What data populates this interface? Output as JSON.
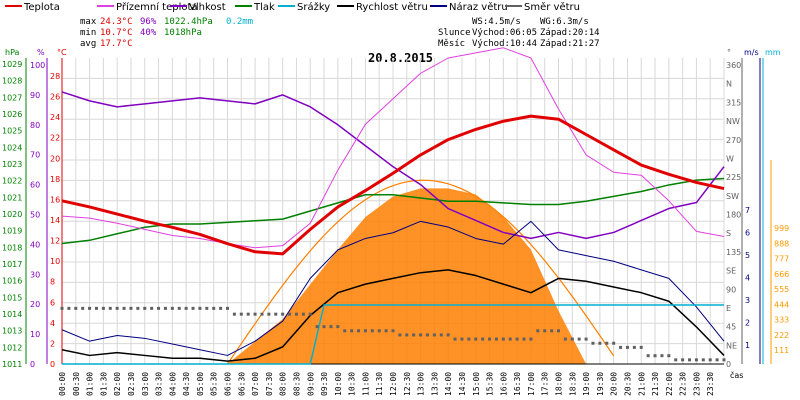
{
  "legend": [
    {
      "label": "Teplota",
      "color": "#e00000"
    },
    {
      "label": "Přízemní teplota",
      "color": "#e040e0"
    },
    {
      "label": "Vlhkost",
      "color": "#8000c0"
    },
    {
      "label": "Tlak",
      "color": "#008000"
    },
    {
      "label": "Srážky",
      "color": "#00b0d0"
    },
    {
      "label": "Rychlost větru",
      "color": "#000000"
    },
    {
      "label": "Náraz větru",
      "color": "#000080"
    },
    {
      "label": "Směr větru",
      "color": "#606060"
    }
  ],
  "stats": {
    "max_label": "max",
    "max_temp": "24.3°C",
    "max_hum": "96%",
    "max_press": "1022.4hPa",
    "rain": "0.2mm",
    "min_label": "min",
    "min_temp": "10.7°C",
    "min_hum": "40%",
    "min_press": "1018hPa",
    "avg_label": "avg",
    "avg_temp": "17.7°C",
    "ws": "WS:4.5m/s",
    "wg": "WG:6.3m/s",
    "sun_label": "Slunce",
    "sun_rise": "Východ:06:05",
    "sun_set": "Západ:20:14",
    "moon_label": "Měsíc",
    "moon_rise": "Východ:10:44",
    "moon_set": "Západ:21:27"
  },
  "date": "20.8.2015",
  "axis_units": {
    "hpa": "hPa",
    "pct": "%",
    "degc": "°C",
    "deg": "°",
    "ms": "m/s",
    "mm": "mm",
    "cas": "čas"
  },
  "colors": {
    "temp": "#e00000",
    "feel": "#e040e0",
    "hum": "#8000c0",
    "press": "#008000",
    "rain": "#00b0d0",
    "wind": "#000000",
    "gust": "#000080",
    "dir": "#606060",
    "sun": "#ff7f00",
    "sunCurve": "#ff7f00",
    "rainAxis": "#00b0d0",
    "mmAxis": "#ff9900"
  },
  "chart_data": {
    "type": "line",
    "x_ticks": [
      "00:00",
      "00:30",
      "01:00",
      "01:30",
      "02:00",
      "02:30",
      "03:00",
      "03:30",
      "04:00",
      "04:30",
      "05:00",
      "05:30",
      "06:00",
      "06:30",
      "07:00",
      "07:30",
      "08:00",
      "08:30",
      "09:00",
      "09:30",
      "10:00",
      "10:30",
      "11:00",
      "11:30",
      "12:00",
      "12:30",
      "13:00",
      "13:30",
      "14:00",
      "14:30",
      "15:00",
      "15:30",
      "16:00",
      "16:30",
      "17:00",
      "17:30",
      "18:00",
      "18:30",
      "19:00",
      "19:30",
      "20:00",
      "20:30",
      "21:00",
      "21:30",
      "22:00",
      "22:30",
      "23:00",
      "23:30"
    ],
    "hpa_ticks": [
      "1029",
      "1028",
      "1027",
      "1026",
      "1025",
      "1024",
      "1023",
      "1022",
      "1021",
      "1020",
      "1019",
      "1018",
      "1017",
      "1016",
      "1015",
      "1014",
      "1013",
      "1012",
      "1011"
    ],
    "pct_ticks": [
      "100",
      "90",
      "80",
      "70",
      "60",
      "50",
      "40",
      "30",
      "20",
      "10",
      "0"
    ],
    "degc_ticks": [
      "28",
      "26",
      "24",
      "22",
      "20",
      "18",
      "16",
      "14",
      "12",
      "10",
      "8",
      "6",
      "4",
      "2",
      "0"
    ],
    "dir_ticks": [
      "360",
      "N",
      "315",
      "NW",
      "270",
      "W",
      "225",
      "SW",
      "180",
      "S",
      "135",
      "SE",
      "90",
      "E",
      "45",
      "NE",
      "0"
    ],
    "ms_ticks": [
      "7",
      "6",
      "5",
      "4",
      "3",
      "2",
      "1"
    ],
    "mm_ticks": [
      "999",
      "888",
      "777",
      "666",
      "555",
      "444",
      "333",
      "222",
      "111"
    ],
    "temperature": {
      "x": [
        0,
        1,
        2,
        3,
        4,
        5,
        6,
        7,
        8,
        9,
        10,
        11,
        12,
        13,
        14,
        15,
        16,
        17,
        18,
        19,
        20,
        21,
        22,
        23,
        24
      ],
      "y": [
        16,
        15.4,
        14.7,
        14.0,
        13.4,
        12.7,
        11.8,
        11.0,
        10.8,
        13.2,
        15.4,
        17.0,
        18.7,
        20.5,
        22.0,
        23.0,
        23.8,
        24.3,
        24.0,
        22.5,
        21.0,
        19.5,
        18.6,
        17.8,
        17.2
      ]
    },
    "feels_like": {
      "x": [
        0,
        1,
        2,
        3,
        4,
        5,
        6,
        7,
        8,
        9,
        10,
        11,
        12,
        13,
        14,
        15,
        16,
        17,
        18,
        19,
        20,
        21,
        22,
        23,
        24
      ],
      "y": [
        14.5,
        14.3,
        13.8,
        13.2,
        12.6,
        12.3,
        11.8,
        11.4,
        11.6,
        13.8,
        19.0,
        23.5,
        26.0,
        28.5,
        30.0,
        30.5,
        31.0,
        30.0,
        25.0,
        20.5,
        18.8,
        18.5,
        16.0,
        13.0,
        12.5
      ]
    },
    "humidity": {
      "x": [
        0,
        1,
        2,
        3,
        4,
        5,
        6,
        7,
        8,
        9,
        10,
        11,
        12,
        13,
        14,
        15,
        16,
        17,
        18,
        19,
        20,
        21,
        22,
        23,
        24
      ],
      "y": [
        91,
        88,
        86,
        87,
        88,
        89,
        88,
        87,
        90,
        86,
        80,
        73,
        66,
        60,
        52,
        48,
        44,
        42,
        44,
        42,
        44,
        48,
        52,
        54,
        66
      ]
    },
    "pressure": {
      "x": [
        0,
        1,
        2,
        3,
        4,
        5,
        6,
        7,
        8,
        9,
        10,
        11,
        12,
        13,
        14,
        15,
        16,
        17,
        18,
        19,
        20,
        21,
        22,
        23,
        24
      ],
      "y": [
        1018.4,
        1018.6,
        1019.0,
        1019.4,
        1019.6,
        1019.6,
        1019.7,
        1019.8,
        1019.9,
        1020.4,
        1020.9,
        1021.4,
        1021.4,
        1021.2,
        1021.0,
        1021.0,
        1020.9,
        1020.8,
        1020.8,
        1021.0,
        1021.3,
        1021.6,
        1022.0,
        1022.3,
        1022.4
      ]
    },
    "rain_mm": {
      "x": [
        0,
        9,
        9.5,
        24
      ],
      "y": [
        0,
        0,
        0.2,
        0.2
      ]
    },
    "wind_speed": {
      "x": [
        0,
        1,
        2,
        3,
        4,
        5,
        6,
        7,
        8,
        9,
        10,
        11,
        12,
        13,
        14,
        15,
        16,
        17,
        18,
        19,
        20,
        21,
        22,
        23,
        24
      ],
      "y": [
        0.5,
        0.3,
        0.4,
        0.3,
        0.2,
        0.2,
        0.1,
        0.2,
        0.6,
        1.7,
        2.5,
        2.8,
        3.0,
        3.2,
        3.3,
        3.1,
        2.8,
        2.5,
        3.0,
        2.9,
        2.7,
        2.5,
        2.2,
        1.3,
        0.3
      ]
    },
    "wind_gust": {
      "x": [
        0,
        1,
        2,
        3,
        4,
        5,
        6,
        7,
        8,
        9,
        10,
        11,
        12,
        13,
        14,
        15,
        16,
        17,
        18,
        19,
        20,
        21,
        22,
        23,
        24
      ],
      "y": [
        1.2,
        0.8,
        1.0,
        0.9,
        0.7,
        0.5,
        0.3,
        0.8,
        1.5,
        3.0,
        4.0,
        4.4,
        4.6,
        5.0,
        4.8,
        4.4,
        4.2,
        5.0,
        4.0,
        3.8,
        3.6,
        3.3,
        3.0,
        2.0,
        0.8
      ]
    },
    "wind_direction": {
      "x": [
        0,
        5.8,
        6,
        8.5,
        9,
        10,
        12,
        14,
        16,
        17,
        18,
        19,
        20,
        21,
        22,
        24
      ],
      "y": [
        67,
        67,
        60,
        60,
        45,
        40,
        35,
        30,
        30,
        40,
        30,
        25,
        20,
        10,
        5,
        5
      ]
    },
    "solar": {
      "x": [
        6,
        8,
        10,
        11,
        12,
        13,
        14,
        15,
        16,
        17,
        18,
        19
      ],
      "y": [
        0,
        220,
        560,
        720,
        820,
        860,
        860,
        830,
        720,
        560,
        260,
        0
      ]
    }
  }
}
